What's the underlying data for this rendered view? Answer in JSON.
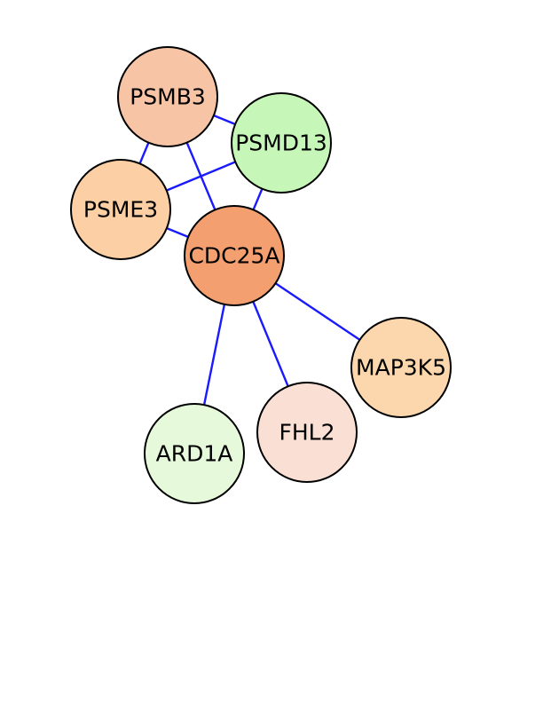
{
  "network": {
    "nodes": [
      {
        "id": "PSMB3",
        "label": "PSMB3",
        "color": "#f7c4a6"
      },
      {
        "id": "PSMD13",
        "label": "PSMD13",
        "color": "#c6f7b8"
      },
      {
        "id": "PSME3",
        "label": "PSME3",
        "color": "#fcd0a4"
      },
      {
        "id": "CDC25A",
        "label": "CDC25A",
        "color": "#f39f70"
      },
      {
        "id": "MAP3K5",
        "label": "MAP3K5",
        "color": "#fcd7ad"
      },
      {
        "id": "FHL2",
        "label": "FHL2",
        "color": "#fae0d4"
      },
      {
        "id": "ARD1A",
        "label": "ARD1A",
        "color": "#e6fadb"
      }
    ],
    "edges": [
      {
        "source": "PSMB3",
        "target": "PSMD13"
      },
      {
        "source": "PSMB3",
        "target": "PSME3"
      },
      {
        "source": "PSMB3",
        "target": "CDC25A"
      },
      {
        "source": "PSMD13",
        "target": "PSME3"
      },
      {
        "source": "PSMD13",
        "target": "CDC25A"
      },
      {
        "source": "PSME3",
        "target": "CDC25A"
      },
      {
        "source": "CDC25A",
        "target": "MAP3K5"
      },
      {
        "source": "CDC25A",
        "target": "FHL2"
      },
      {
        "source": "CDC25A",
        "target": "ARD1A"
      }
    ]
  }
}
